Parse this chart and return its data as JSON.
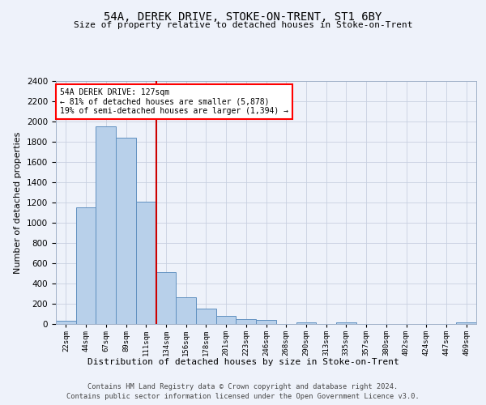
{
  "title_line1": "54A, DEREK DRIVE, STOKE-ON-TRENT, ST1 6BY",
  "title_line2": "Size of property relative to detached houses in Stoke-on-Trent",
  "xlabel": "Distribution of detached houses by size in Stoke-on-Trent",
  "ylabel": "Number of detached properties",
  "bin_labels": [
    "22sqm",
    "44sqm",
    "67sqm",
    "89sqm",
    "111sqm",
    "134sqm",
    "156sqm",
    "178sqm",
    "201sqm",
    "223sqm",
    "246sqm",
    "268sqm",
    "290sqm",
    "313sqm",
    "335sqm",
    "357sqm",
    "380sqm",
    "402sqm",
    "424sqm",
    "447sqm",
    "469sqm"
  ],
  "bar_heights": [
    30,
    1150,
    1950,
    1840,
    1210,
    515,
    265,
    155,
    80,
    45,
    40,
    0,
    20,
    0,
    15,
    0,
    0,
    0,
    0,
    0,
    20
  ],
  "bar_color": "#b8d0ea",
  "bar_edge_color": "#6090c0",
  "vline_color": "#cc0000",
  "annotation_title": "54A DEREK DRIVE: 127sqm",
  "annotation_line1": "← 81% of detached houses are smaller (5,878)",
  "annotation_line2": "19% of semi-detached houses are larger (1,394) →",
  "ylim": [
    0,
    2400
  ],
  "yticks": [
    0,
    200,
    400,
    600,
    800,
    1000,
    1200,
    1400,
    1600,
    1800,
    2000,
    2200,
    2400
  ],
  "footer_line1": "Contains HM Land Registry data © Crown copyright and database right 2024.",
  "footer_line2": "Contains public sector information licensed under the Open Government Licence v3.0.",
  "bg_color": "#eef2fa",
  "plot_bg_color": "#eef2fa",
  "grid_color": "#c8d0e0"
}
